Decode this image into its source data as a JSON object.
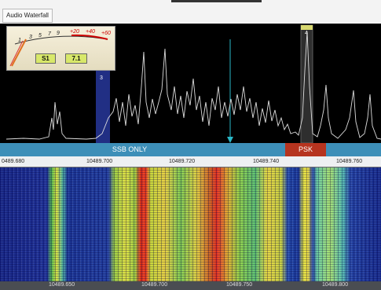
{
  "toolbar": {
    "button": "Audio Waterfall"
  },
  "s_meter": {
    "scale": [
      "1",
      "3",
      "5",
      "7",
      "9",
      "+20",
      "+40",
      "+60"
    ],
    "reading": "S1",
    "value": "7.1"
  },
  "markers": [
    "3",
    "4"
  ],
  "bands": [
    "SSB ONLY",
    "PSK"
  ],
  "frequency_axis": [
    "0489.680",
    "10489.700",
    "10489.720",
    "10489.740",
    "10489.760"
  ],
  "waterfall_axis": [
    "10489.650",
    "10489.700",
    "10489.750",
    "10489.800"
  ]
}
